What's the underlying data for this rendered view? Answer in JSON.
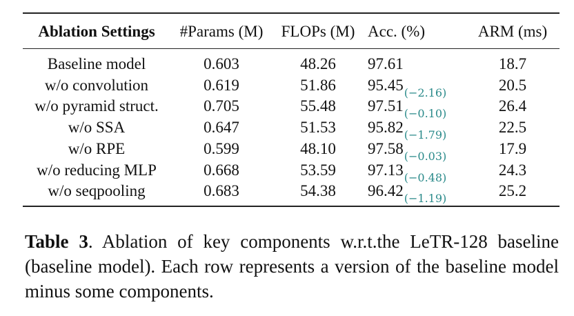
{
  "table": {
    "headers": {
      "settings": "Ablation Settings",
      "params": "#Params (M)",
      "flops": "FLOPs (M)",
      "acc": "Acc. (%)",
      "arm": "ARM (ms)"
    },
    "rows": [
      {
        "name": "Baseline model",
        "params": "0.603",
        "flops": "48.26",
        "acc": "97.61",
        "delta": "",
        "arm": "18.7"
      },
      {
        "name": "w/o convolution",
        "params": "0.619",
        "flops": "51.86",
        "acc": "95.45",
        "delta": "(−2.16)",
        "arm": "20.5"
      },
      {
        "name": "w/o pyramid struct.",
        "params": "0.705",
        "flops": "55.48",
        "acc": "97.51",
        "delta": "(−0.10)",
        "arm": "26.4"
      },
      {
        "name": "w/o SSA",
        "params": "0.647",
        "flops": "51.53",
        "acc": "95.82",
        "delta": "(−1.79)",
        "arm": "22.5"
      },
      {
        "name": "w/o RPE",
        "params": "0.599",
        "flops": "48.10",
        "acc": "97.58",
        "delta": "(−0.03)",
        "arm": "17.9"
      },
      {
        "name": "w/o reducing MLP",
        "params": "0.668",
        "flops": "53.59",
        "acc": "97.13",
        "delta": "(−0.48)",
        "arm": "24.3"
      },
      {
        "name": "w/o seqpooling",
        "params": "0.683",
        "flops": "54.38",
        "acc": "96.42",
        "delta": "(−1.19)",
        "arm": "25.2"
      }
    ]
  },
  "caption": {
    "label": "Table 3",
    "text": ". Ablation of key components w.r.t.the LeTR-128 baseline (baseline model). Each row represents a version of the baseline model minus some components."
  },
  "colors": {
    "delta": "#2a8a8a",
    "text": "#111111"
  }
}
